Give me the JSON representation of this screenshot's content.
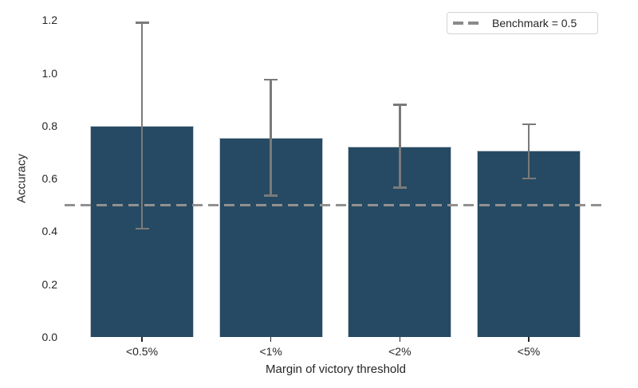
{
  "chart_data": {
    "type": "bar",
    "title": "",
    "categories": [
      "<0.5%",
      "<1%",
      "<2%",
      "<5%"
    ],
    "values": [
      0.8,
      0.755,
      0.72,
      0.705
    ],
    "error_low": [
      0.41,
      0.535,
      0.565,
      0.6
    ],
    "error_high": [
      1.19,
      0.975,
      0.88,
      0.805
    ],
    "xlabel": "Margin of victory threshold",
    "ylabel": "Accuracy",
    "ylim": [
      0.0,
      1.2
    ],
    "yticks": [
      0.0,
      0.2,
      0.4,
      0.6,
      0.8,
      1.0,
      1.2
    ],
    "ytick_labels": [
      "0.0",
      "0.2",
      "0.4",
      "0.6",
      "0.8",
      "1.0",
      "1.2"
    ],
    "grid": false,
    "legend_position": "upper right",
    "benchmark": {
      "value": 0.5,
      "label": "Benchmark = 0.5"
    },
    "colors": {
      "bar_fill": "#264a63",
      "bar_edge": "#c5cbd1",
      "error_bar": "#7a7a7a",
      "benchmark_line": "#919191",
      "text": "#262626",
      "legend_border": "#d2d2d2",
      "legend_dash": "#8a8a8a"
    }
  }
}
